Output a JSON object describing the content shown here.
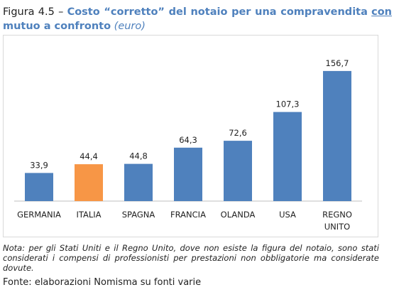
{
  "header": {
    "figure_label": "Figura 4.5 –",
    "title_part1": "Costo “corretto” del notaio per una compravendita",
    "title_con": "con",
    "title_part2": "mutuo a confronto",
    "unit": "(euro)"
  },
  "chart_data": {
    "type": "bar",
    "categories": [
      [
        "GERMANIA"
      ],
      [
        "ITALIA"
      ],
      [
        "SPAGNA"
      ],
      [
        "FRANCIA"
      ],
      [
        "OLANDA"
      ],
      [
        "USA"
      ],
      [
        "REGNO",
        "UNITO"
      ]
    ],
    "values": [
      33.9,
      44.4,
      44.8,
      64.3,
      72.6,
      107.3,
      156.7
    ],
    "value_labels": [
      "33,9",
      "44,4",
      "44,8",
      "64,3",
      "72,6",
      "107,3",
      "156,7"
    ],
    "colors": [
      "#4f81bd",
      "#f79646",
      "#4f81bd",
      "#4f81bd",
      "#4f81bd",
      "#4f81bd",
      "#4f81bd"
    ],
    "ylim": [
      0,
      160
    ],
    "grid": false,
    "legend": "none"
  },
  "footer": {
    "note": "Nota: per gli Stati Uniti e il Regno Unito, dove non esiste la figura del notaio, sono stati considerati i compensi di professionisti per prestazioni non obbligatorie ma considerate dovute.",
    "source": "Fonte: elaborazioni Nomisma su fonti varie"
  }
}
